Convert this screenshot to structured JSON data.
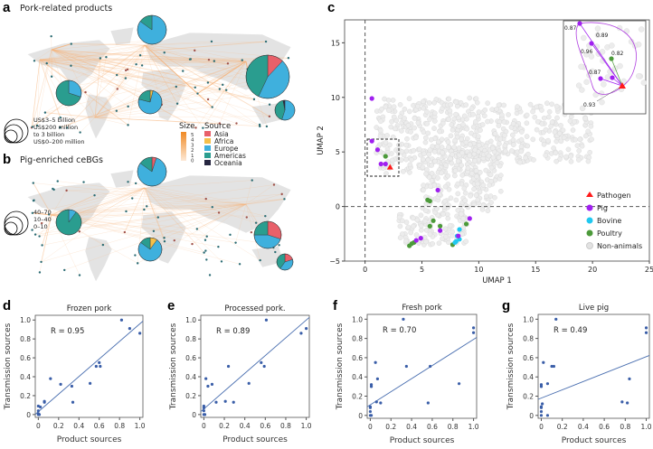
{
  "panels": {
    "a": {
      "letter": "a",
      "title": "Pork-related products",
      "size_legend": [
        "US$3–5 billion",
        "US$200 million",
        "to 3 billion",
        "US$0–200 million"
      ],
      "pies": [
        {
          "name": "europe",
          "f": [
            0,
            0,
            0.85,
            0.15,
            0
          ]
        },
        {
          "name": "americas",
          "f": [
            0,
            0,
            0.3,
            0.7,
            0
          ]
        },
        {
          "name": "africa",
          "f": [
            0,
            0.04,
            0.75,
            0.21,
            0
          ]
        },
        {
          "name": "asia",
          "f": [
            0.12,
            0,
            0.45,
            0.43,
            0
          ]
        },
        {
          "name": "oceania",
          "f": [
            0,
            0,
            0.55,
            0.42,
            0.03
          ]
        }
      ]
    },
    "b": {
      "letter": "b",
      "title": "Pig-enriched ceBGs",
      "size_legend": [
        "40–70",
        "10–40",
        "0–10"
      ],
      "pies": [
        {
          "name": "europe",
          "f": [
            0.05,
            0,
            0.8,
            0.15,
            0
          ]
        },
        {
          "name": "americas",
          "f": [
            0,
            0,
            0.1,
            0.9,
            0
          ]
        },
        {
          "name": "africa",
          "f": [
            0,
            0.1,
            0.75,
            0.15,
            0
          ]
        },
        {
          "name": "asia",
          "f": [
            0.3,
            0,
            0.45,
            0.25,
            0
          ]
        },
        {
          "name": "oceania",
          "f": [
            0.2,
            0,
            0.4,
            0.4,
            0
          ]
        }
      ]
    },
    "c": {
      "letter": "c"
    },
    "d": {
      "letter": "d"
    },
    "e": {
      "letter": "e"
    },
    "f": {
      "letter": "f"
    },
    "g": {
      "letter": "g"
    }
  },
  "legend": {
    "size_title": "Size",
    "size_ticks": [
      "5",
      "4",
      "3",
      "2",
      "1",
      "0"
    ],
    "source_title": "Source",
    "sources": [
      {
        "label": "Asia",
        "color": "#e8606a"
      },
      {
        "label": "Africa",
        "color": "#f5c04a"
      },
      {
        "label": "Europe",
        "color": "#3fb0dd"
      },
      {
        "label": "Americas",
        "color": "#2a9d8f"
      },
      {
        "label": "Oceania",
        "color": "#262640"
      }
    ]
  },
  "chart_data": [
    {
      "type": "scatter",
      "panel": "c",
      "xlabel": "UMAP 1",
      "ylabel": "UMAP 2",
      "xlim": [
        -1.8,
        25
      ],
      "ylim": [
        -5,
        17.1
      ],
      "xticks": [
        "0",
        "5",
        "10",
        "15",
        "20",
        "25"
      ],
      "yticks": [
        "-5",
        "0",
        "5",
        "10",
        "15"
      ],
      "legend": [
        {
          "label": "Pathogen",
          "color": "#ff1a1a"
        },
        {
          "label": "Pig",
          "color": "#a020f0"
        },
        {
          "label": "Bovine",
          "color": "#20c8f0"
        },
        {
          "label": "Poultry",
          "color": "#4c9a3a"
        },
        {
          "label": "Non-animals",
          "color": "#e2e2e2"
        }
      ],
      "series": {
        "Pathogen": [
          [
            2.2,
            3.6
          ]
        ],
        "Pig": [
          [
            0.6,
            9.9
          ],
          [
            0.6,
            6.0
          ],
          [
            1.1,
            5.2
          ],
          [
            1.4,
            3.9
          ],
          [
            1.8,
            3.9
          ],
          [
            6.4,
            1.5
          ],
          [
            9.2,
            -1.1
          ],
          [
            6.6,
            -2.2
          ],
          [
            8.2,
            -2.7
          ],
          [
            4.9,
            -2.9
          ],
          [
            4.5,
            -3.1
          ]
        ],
        "Bovine": [
          [
            8.3,
            -2.1
          ],
          [
            8.1,
            -2.7
          ],
          [
            8.3,
            -3.0
          ],
          [
            8.0,
            -3.2
          ],
          [
            7.9,
            -3.3
          ]
        ],
        "Poultry": [
          [
            1.8,
            4.6
          ],
          [
            5.5,
            0.6
          ],
          [
            5.7,
            0.5
          ],
          [
            6.0,
            -1.3
          ],
          [
            5.7,
            -1.8
          ],
          [
            6.6,
            -1.8
          ],
          [
            8.9,
            -1.6
          ],
          [
            4.3,
            -3.3
          ],
          [
            4.1,
            -3.4
          ],
          [
            3.9,
            -3.6
          ],
          [
            7.7,
            -3.5
          ]
        ]
      },
      "inset_labels": [
        "0.87",
        "0.89",
        "0.96",
        "0.82",
        "0.87",
        "0.93"
      ]
    },
    {
      "type": "scatter",
      "panel": "d",
      "title": "Frozen pork",
      "r_label": "R = 0.95",
      "xlabel": "Product sources",
      "ylabel": "Transmission sources",
      "xlim": [
        -0.03,
        1.03
      ],
      "ylim": [
        -0.03,
        1.05
      ],
      "xticks": [
        "0",
        "0.2",
        "0.4",
        "0.6",
        "0.8",
        "1.0"
      ],
      "yticks": [
        "0",
        "0.2",
        "0.4",
        "0.6",
        "0.8",
        "1.0"
      ],
      "fit": [
        0.03,
        0.93
      ],
      "points": [
        [
          0,
          0.09
        ],
        [
          0.02,
          0.08
        ],
        [
          0,
          0.04
        ],
        [
          0,
          0.01
        ],
        [
          0.01,
          0
        ],
        [
          0,
          0
        ],
        [
          0.06,
          0.13
        ],
        [
          0.06,
          0.14
        ],
        [
          0.12,
          0.38
        ],
        [
          0.22,
          0.32
        ],
        [
          0.33,
          0.3
        ],
        [
          0.34,
          0.13
        ],
        [
          0.51,
          0.33
        ],
        [
          0.57,
          0.51
        ],
        [
          0.6,
          0.55
        ],
        [
          0.61,
          0.51
        ],
        [
          0.82,
          1.0
        ],
        [
          0.9,
          0.91
        ],
        [
          1.0,
          0.86
        ]
      ]
    },
    {
      "type": "scatter",
      "panel": "e",
      "title": "Processed pork.",
      "r_label": "R = 0.89",
      "xlabel": "Product sources",
      "ylabel": "Transmission sources",
      "xlim": [
        -0.03,
        1.03
      ],
      "ylim": [
        -0.03,
        1.05
      ],
      "xticks": [
        "0",
        "0.2",
        "0.4",
        "0.6",
        "0.8",
        "1.0"
      ],
      "yticks": [
        "0",
        "0.2",
        "0.4",
        "0.6",
        "0.8",
        "1.0"
      ],
      "fit": [
        0.06,
        0.94
      ],
      "points": [
        [
          0,
          0.09
        ],
        [
          0,
          0.07
        ],
        [
          0,
          0.04
        ],
        [
          0,
          0
        ],
        [
          0.01,
          0
        ],
        [
          0.02,
          0.38
        ],
        [
          0.04,
          0.3
        ],
        [
          0.08,
          0.32
        ],
        [
          0.12,
          0.13
        ],
        [
          0.21,
          0.14
        ],
        [
          0.24,
          0.51
        ],
        [
          0.29,
          0.13
        ],
        [
          0.44,
          0.33
        ],
        [
          0.56,
          0.55
        ],
        [
          0.59,
          0.51
        ],
        [
          0.61,
          1.0
        ],
        [
          0.95,
          0.86
        ],
        [
          1.0,
          0.91
        ]
      ]
    },
    {
      "type": "scatter",
      "panel": "f",
      "title": "Fresh pork",
      "r_label": "R = 0.70",
      "xlabel": "Product sources",
      "ylabel": "Transmission sources",
      "xlim": [
        -0.03,
        1.03
      ],
      "ylim": [
        -0.03,
        1.05
      ],
      "xticks": [
        "0",
        "0.2",
        "0.4",
        "0.6",
        "0.8",
        "1.0"
      ],
      "yticks": [
        "0",
        "0.2",
        "0.4",
        "0.6",
        "0.8",
        "1.0"
      ],
      "fit": [
        0.11,
        0.68
      ],
      "points": [
        [
          0,
          0.09
        ],
        [
          0,
          0.08
        ],
        [
          0,
          0.04
        ],
        [
          0,
          0
        ],
        [
          0.01,
          0
        ],
        [
          0.01,
          0.32
        ],
        [
          0.01,
          0.3
        ],
        [
          0.05,
          0.55
        ],
        [
          0.06,
          0.14
        ],
        [
          0.07,
          0.38
        ],
        [
          0.1,
          0.13
        ],
        [
          0.32,
          1.0
        ],
        [
          0.35,
          0.51
        ],
        [
          0.56,
          0.13
        ],
        [
          0.58,
          0.51
        ],
        [
          0.86,
          0.33
        ],
        [
          1.0,
          0.91
        ],
        [
          1.0,
          0.86
        ]
      ]
    },
    {
      "type": "scatter",
      "panel": "g",
      "title": "Live pig",
      "r_label": "R = 0.49",
      "xlabel": "Product sources",
      "ylabel": "Transmission sources",
      "xlim": [
        -0.03,
        1.03
      ],
      "ylim": [
        -0.03,
        1.05
      ],
      "xticks": [
        "0",
        "0.2",
        "0.4",
        "0.6",
        "0.8",
        "1.0"
      ],
      "yticks": [
        "0",
        "0.2",
        "0.4",
        "0.6",
        "0.8",
        "1.0"
      ],
      "fit": [
        0.18,
        0.43
      ],
      "points": [
        [
          0,
          0.09
        ],
        [
          0,
          0.08
        ],
        [
          0,
          0.04
        ],
        [
          0,
          0
        ],
        [
          0.01,
          0.12
        ],
        [
          0,
          0.32
        ],
        [
          0,
          0.3
        ],
        [
          0.02,
          0.55
        ],
        [
          0.06,
          0.33
        ],
        [
          0.06,
          0
        ],
        [
          0.1,
          0.51
        ],
        [
          0.12,
          0.51
        ],
        [
          0.14,
          1.0
        ],
        [
          0.77,
          0.14
        ],
        [
          0.82,
          0.13
        ],
        [
          0.84,
          0.38
        ],
        [
          1.0,
          0.91
        ],
        [
          1.0,
          0.86
        ]
      ]
    }
  ]
}
